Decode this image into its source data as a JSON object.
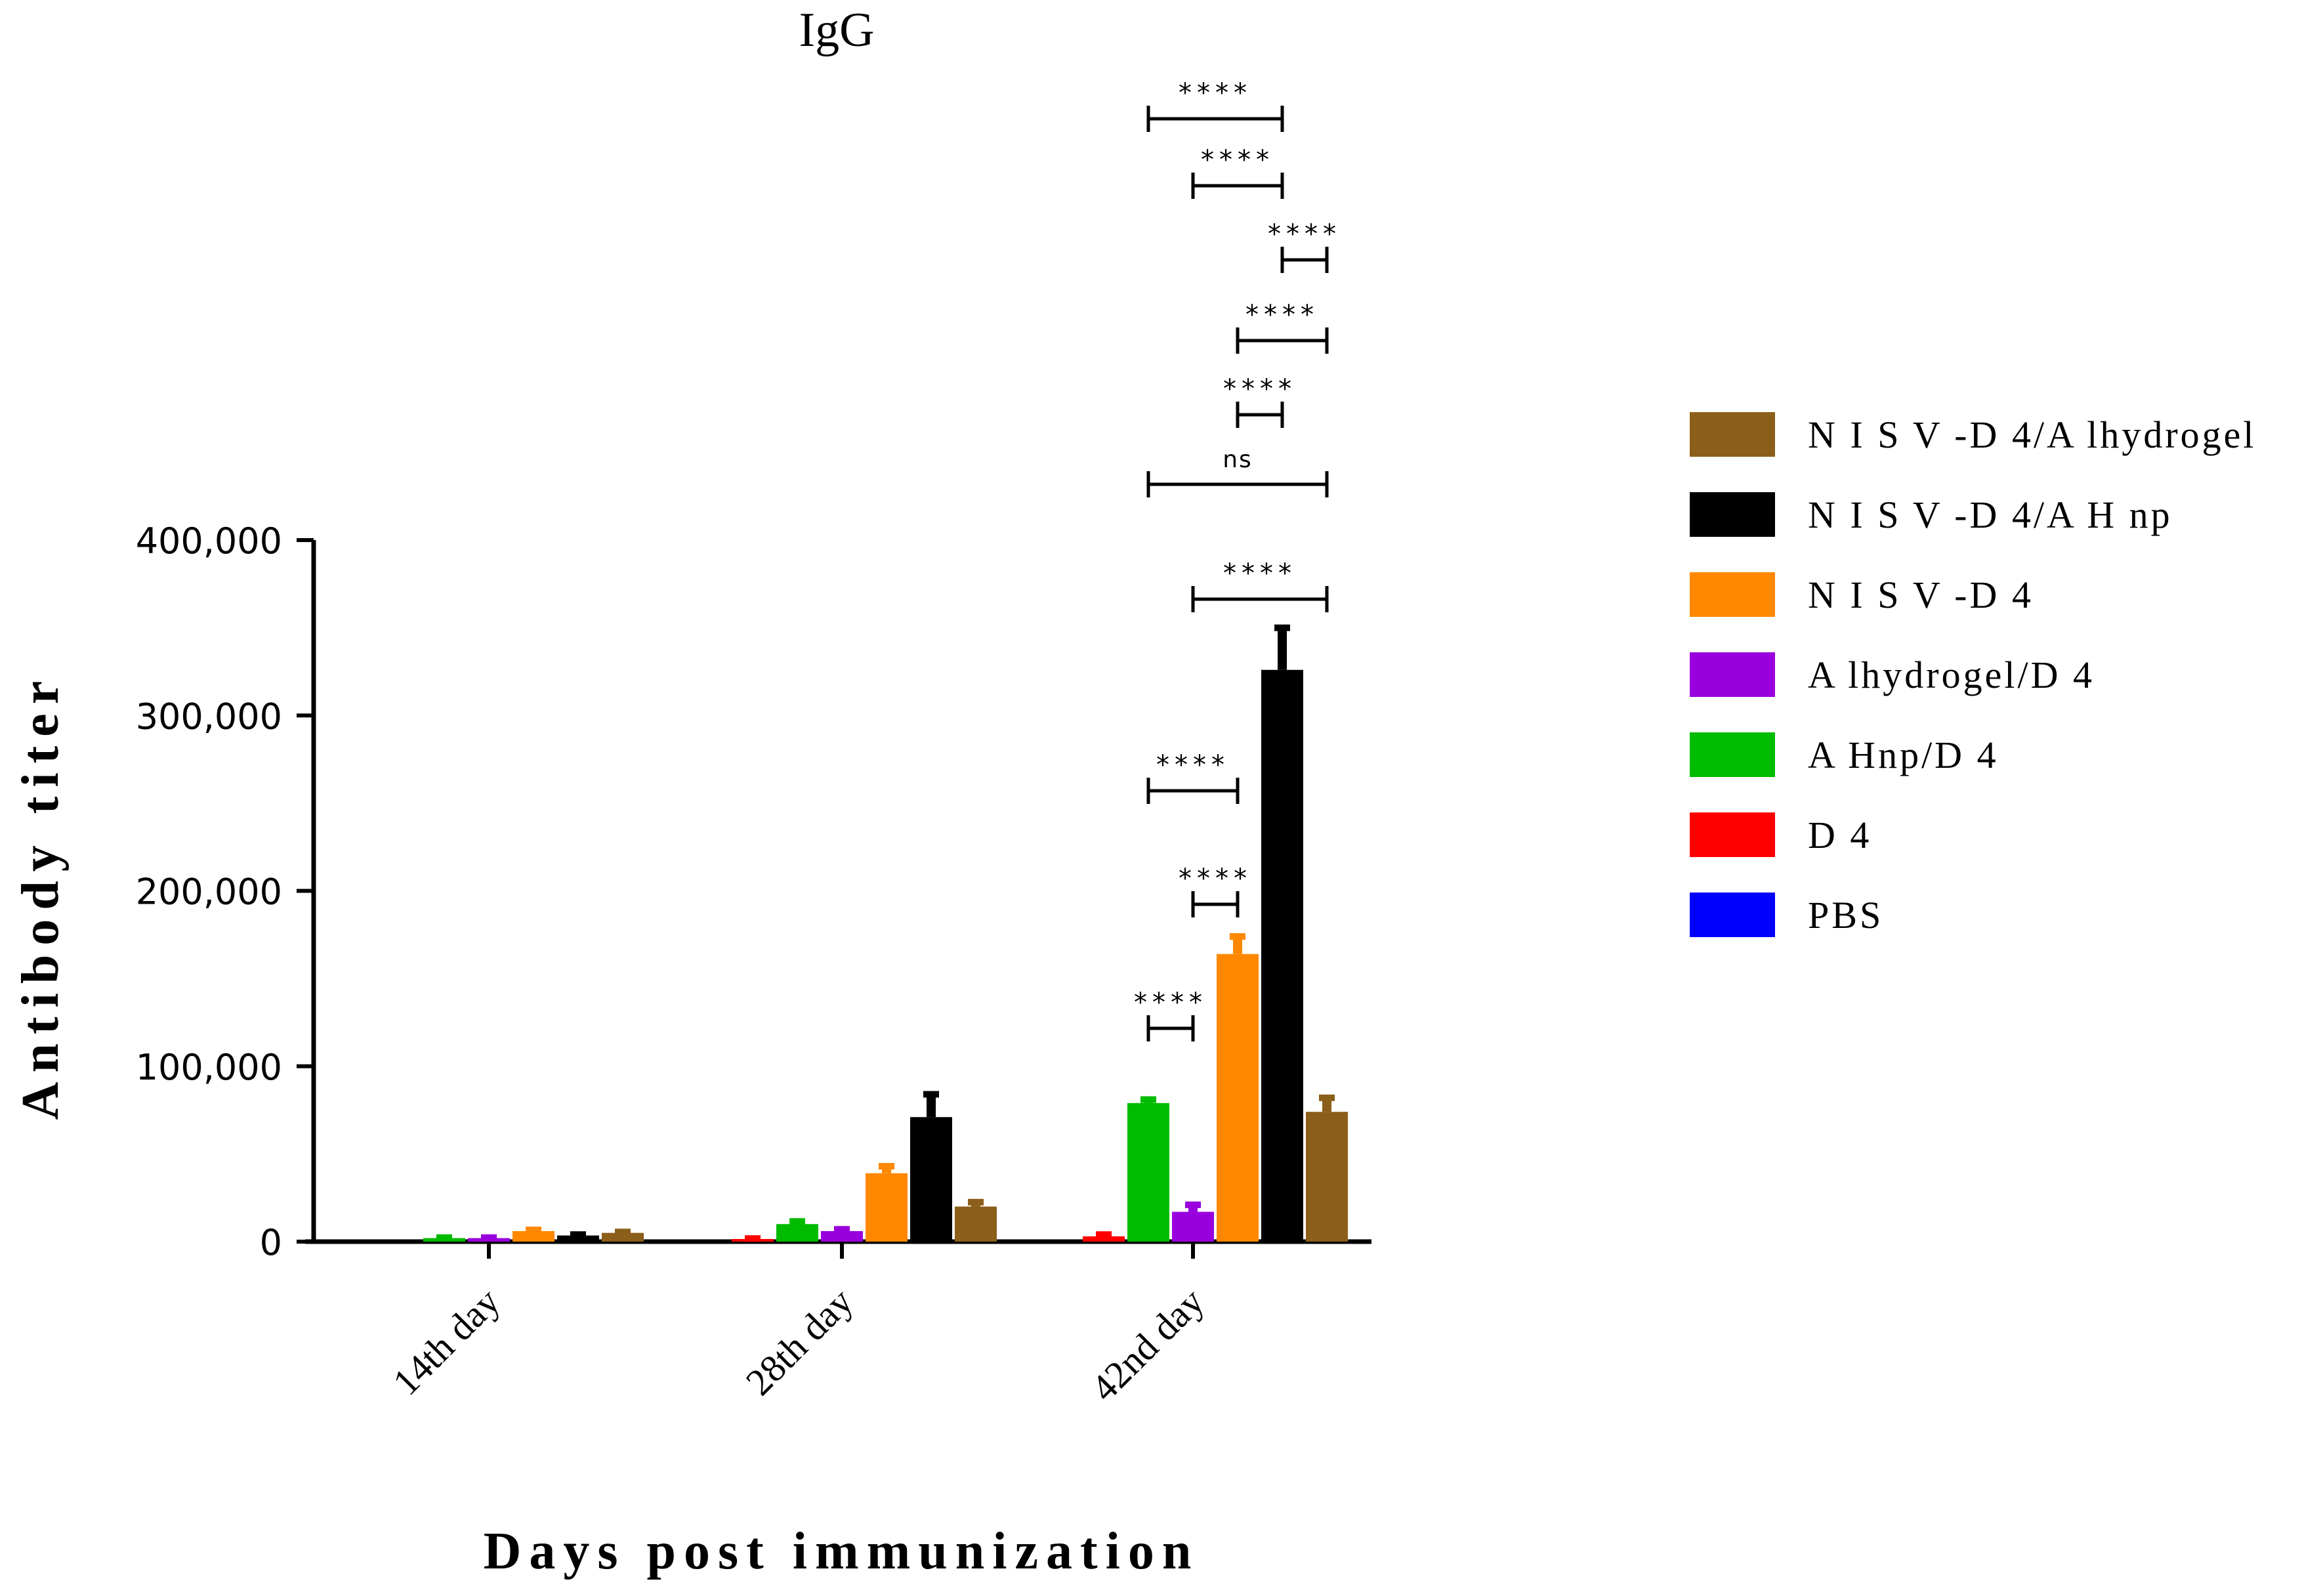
{
  "chart_data": {
    "type": "bar",
    "title": "IgG",
    "xlabel": "Days post immunization",
    "ylabel": "Antibody titer",
    "ylim": [
      0,
      400000
    ],
    "yticks": [
      0,
      100000,
      200000,
      300000,
      400000
    ],
    "ytick_labels": [
      "0",
      "100,000",
      "200,000",
      "300,000",
      "400,000"
    ],
    "categories": [
      "14th day",
      "28th day",
      "42nd day"
    ],
    "series": [
      {
        "name": "PBS",
        "color": "#0000ff",
        "values": [
          0,
          0,
          0
        ],
        "errors": [
          0,
          0,
          0
        ]
      },
      {
        "name": "D 4",
        "color": "#ff0000",
        "values": [
          0,
          1500,
          3000
        ],
        "errors": [
          0,
          300,
          1000
        ]
      },
      {
        "name": "A Hnp/D 4",
        "color": "#00bb00",
        "values": [
          2000,
          10000,
          79000
        ],
        "errors": [
          300,
          1500,
          2000
        ]
      },
      {
        "name": "A lhydrogel/D 4",
        "color": "#9900dd",
        "values": [
          2000,
          6000,
          17000
        ],
        "errors": [
          300,
          1000,
          4000
        ]
      },
      {
        "name": "N I S V -D 4",
        "color": "#ff8800",
        "values": [
          6000,
          39000,
          164000
        ],
        "errors": [
          700,
          4000,
          10000
        ]
      },
      {
        "name": "N I S V -D 4/A H  np",
        "color": "#000000",
        "values": [
          3500,
          71000,
          326000
        ],
        "errors": [
          500,
          13000,
          24000
        ]
      },
      {
        "name": "N I S V -D 4/A lhydrogel",
        "color": "#8b5e1a",
        "values": [
          5000,
          20000,
          74000
        ],
        "errors": [
          500,
          2500,
          8000
        ]
      }
    ],
    "legend_order": [
      "N I S V -D 4/A lhydrogel",
      "N I S V -D 4/A H  np",
      "N I S V -D 4",
      "A lhydrogel/D 4",
      "A Hnp/D 4",
      "D 4",
      "PBS"
    ],
    "legend_position": "right",
    "significance": [
      {
        "category": "42nd day",
        "from": "A Hnp/D 4",
        "to": "A lhydrogel/D 4",
        "label": "****"
      },
      {
        "category": "42nd day",
        "from": "A lhydrogel/D 4",
        "to": "N I S V -D 4",
        "label": "****"
      },
      {
        "category": "42nd day",
        "from": "A Hnp/D 4",
        "to": "N I S V -D 4",
        "label": "****"
      },
      {
        "category": "42nd day",
        "from": "A lhydrogel/D 4",
        "to": "N I S V -D 4/A lhydrogel",
        "label": "****"
      },
      {
        "category": "42nd day",
        "from": "A Hnp/D 4",
        "to": "N I S V -D 4/A lhydrogel",
        "label": "ns"
      },
      {
        "category": "42nd day",
        "from": "N I S V -D 4",
        "to": "N I S V -D 4/A H  np",
        "label": "****"
      },
      {
        "category": "42nd day",
        "from": "N I S V -D 4",
        "to": "N I S V -D 4/A lhydrogel",
        "label": "****"
      },
      {
        "category": "42nd day",
        "from": "N I S V -D 4/A H  np",
        "to": "N I S V -D 4/A lhydrogel",
        "label": "****"
      },
      {
        "category": "42nd day",
        "from": "A lhydrogel/D 4",
        "to": "N I S V -D 4/A H  np",
        "label": "****"
      },
      {
        "category": "42nd day",
        "from": "A Hnp/D 4",
        "to": "N I S V -D 4/A H  np",
        "label": "****"
      }
    ]
  }
}
